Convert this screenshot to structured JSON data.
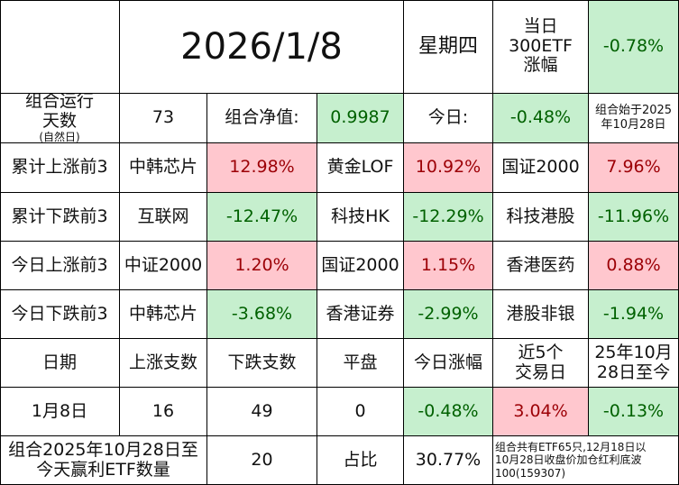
{
  "header": {
    "date": "2026/1/8",
    "weekday": "星期四",
    "etf_label": "当日\n300ETF\n涨幅",
    "etf_value": "-0.78%"
  },
  "run": {
    "label": "组合运行\n天数",
    "label_note": "(自然日)",
    "days": "73",
    "nav_label": "组合净值:",
    "nav_value": "0.9987",
    "today_label": "今日:",
    "today_value": "-0.48%",
    "start_note": "组合始于2025\n年10月28日"
  },
  "rankings": [
    {
      "label": "累计上涨前3",
      "items": [
        {
          "name": "中韩芯片",
          "value": "12.98%",
          "tone": "red"
        },
        {
          "name": "黄金LOF",
          "value": "10.92%",
          "tone": "red"
        },
        {
          "name": "国证2000",
          "value": "7.96%",
          "tone": "red"
        }
      ]
    },
    {
      "label": "累计下跌前3",
      "items": [
        {
          "name": "互联网",
          "value": "-12.47%",
          "tone": "green"
        },
        {
          "name": "科技HK",
          "value": "-12.29%",
          "tone": "green"
        },
        {
          "name": "科技港股",
          "value": "-11.96%",
          "tone": "green"
        }
      ]
    },
    {
      "label": "今日上涨前3",
      "items": [
        {
          "name": "中证2000",
          "value": "1.20%",
          "tone": "red"
        },
        {
          "name": "国证2000",
          "value": "1.15%",
          "tone": "red"
        },
        {
          "name": "香港医药",
          "value": "0.88%",
          "tone": "red"
        }
      ]
    },
    {
      "label": "今日下跌前3",
      "items": [
        {
          "name": "中韩芯片",
          "value": "-3.68%",
          "tone": "green"
        },
        {
          "name": "香港证券",
          "value": "-2.99%",
          "tone": "green"
        },
        {
          "name": "港股非银",
          "value": "-1.94%",
          "tone": "green"
        }
      ]
    }
  ],
  "stats": {
    "headers": [
      "日期",
      "上涨支数",
      "下跌支数",
      "平盘",
      "今日涨幅",
      "近5个\n交易日",
      "25年10月\n28日至今"
    ],
    "values": [
      "1月8日",
      "16",
      "49",
      "0",
      "-0.48%",
      "3.04%",
      "-0.13%"
    ]
  },
  "footer": {
    "label": "组合2025年10月28日至\n今天赢利ETF数量",
    "count": "20",
    "ratio_label": "占比",
    "ratio_value": "30.77%",
    "note": "组合共有ETF65只,12月18日以\n10月28日收盘价加仓红利底波\n100(159307)"
  }
}
